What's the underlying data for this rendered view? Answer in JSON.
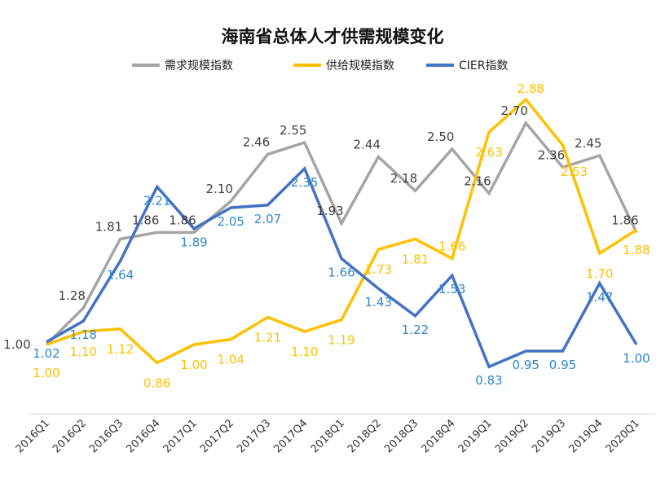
{
  "chart_data": {
    "type": "line",
    "title": "海南省总体人才供需规模变化",
    "categories": [
      "2016Q1",
      "2016Q2",
      "2016Q3",
      "2016Q4",
      "2017Q1",
      "2017Q2",
      "2017Q3",
      "2017Q4",
      "2018Q1",
      "2018Q2",
      "2018Q3",
      "2018Q4",
      "2019Q1",
      "2019Q2",
      "2019Q3",
      "2019Q4",
      "2020Q1"
    ],
    "series": [
      {
        "name": "需求规模指数",
        "color": "#a5a5a5",
        "label_color": "#404040",
        "values": [
          1.0,
          1.28,
          1.81,
          1.86,
          1.86,
          2.1,
          2.46,
          2.55,
          1.93,
          2.44,
          2.18,
          2.5,
          2.16,
          2.7,
          2.36,
          2.45,
          1.86
        ]
      },
      {
        "name": "供给规模指数",
        "color": "#ffc000",
        "label_color": "#ffc000",
        "values": [
          1.0,
          1.1,
          1.12,
          0.86,
          1.0,
          1.04,
          1.21,
          1.1,
          1.19,
          1.73,
          1.81,
          1.66,
          2.63,
          2.88,
          2.53,
          1.7,
          1.88
        ]
      },
      {
        "name": "CIER指数",
        "color": "#4472c4",
        "label_color": "#2e86c8",
        "values": [
          1.02,
          1.18,
          1.64,
          2.21,
          1.89,
          2.05,
          2.07,
          2.35,
          1.66,
          1.43,
          1.22,
          1.53,
          0.83,
          0.95,
          0.95,
          1.47,
          1.0
        ]
      }
    ],
    "ylim": [
      0.5,
      3.0
    ],
    "grid": false,
    "legend_position": "top",
    "data_labels": true
  }
}
